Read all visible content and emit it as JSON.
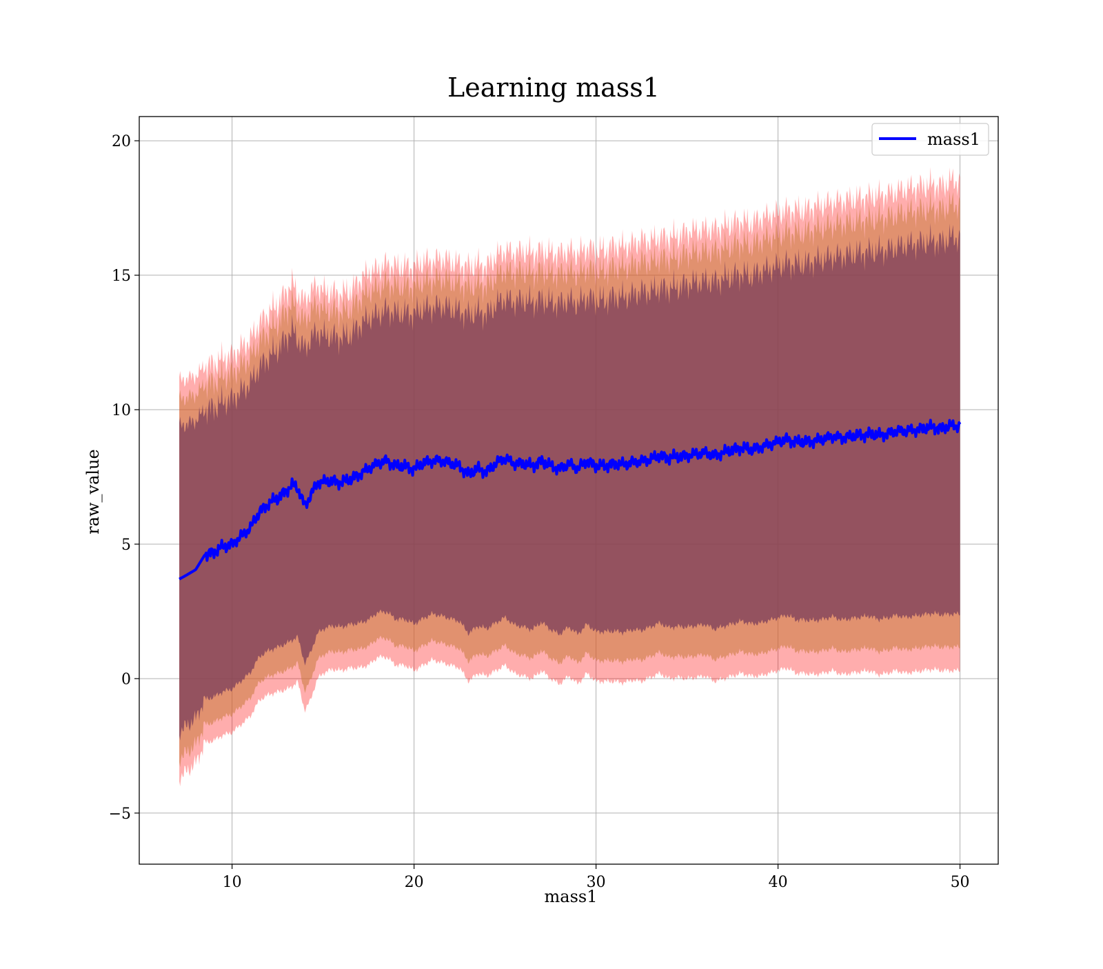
{
  "chart_data": {
    "type": "line",
    "title": "Learning mass1",
    "xlabel": "mass1",
    "ylabel": "raw_value",
    "xlim": [
      4.9,
      52.1
    ],
    "ylim": [
      -6.9,
      20.9
    ],
    "xticks": [
      10,
      20,
      30,
      40,
      50
    ],
    "yticks": [
      -5,
      0,
      5,
      10,
      15,
      20
    ],
    "xtick_labels": [
      "10",
      "20",
      "30",
      "40",
      "50"
    ],
    "ytick_labels": [
      "−5",
      "0",
      "5",
      "10",
      "15",
      "20"
    ],
    "grid": true,
    "legend": {
      "position": "top-right",
      "entries": [
        "mass1"
      ]
    },
    "colors": {
      "line": "#0000ff",
      "band_outer": "#ff0000",
      "band_middle": "#c87a3c",
      "band_inner": "#7a3d5a",
      "grid": "#b0b0b0"
    },
    "series": [
      {
        "name": "mass1",
        "x": [
          7.1,
          7.5,
          8,
          8.5,
          9,
          9.5,
          10,
          10.5,
          11,
          11.5,
          12,
          12.5,
          13,
          13.3,
          13.6,
          14,
          14.3,
          14.7,
          15,
          15.5,
          16,
          16.5,
          17,
          17.5,
          18,
          18.5,
          19,
          19.5,
          20,
          20.5,
          21,
          21.5,
          22,
          22.5,
          23,
          23.5,
          24,
          24.5,
          25,
          25.5,
          26,
          26.5,
          27,
          27.5,
          28,
          28.5,
          29,
          29.5,
          30,
          30.5,
          31,
          31.5,
          32,
          32.5,
          33,
          33.5,
          34,
          34.5,
          35,
          35.5,
          36,
          36.5,
          37,
          37.5,
          38,
          38.5,
          39,
          39.5,
          40,
          40.5,
          41,
          41.5,
          42,
          42.5,
          43,
          43.5,
          44,
          44.5,
          45,
          45.5,
          46,
          46.5,
          47,
          47.5,
          48,
          48.5,
          49,
          49.5,
          50
        ],
        "mean": [
          3.7,
          3.85,
          4.05,
          4.6,
          4.7,
          4.9,
          5.0,
          5.3,
          5.6,
          6.2,
          6.5,
          6.7,
          7.0,
          7.2,
          7.1,
          6.4,
          6.8,
          7.3,
          7.3,
          7.35,
          7.3,
          7.4,
          7.6,
          7.8,
          8.0,
          8.1,
          7.9,
          7.9,
          7.8,
          8.0,
          8.1,
          8.1,
          8.0,
          7.9,
          7.6,
          7.8,
          7.7,
          8.0,
          8.2,
          8.0,
          8.0,
          7.9,
          8.1,
          7.9,
          7.8,
          8.0,
          7.8,
          8.1,
          7.9,
          7.9,
          8.0,
          7.95,
          8.05,
          8.1,
          8.15,
          8.3,
          8.2,
          8.25,
          8.3,
          8.35,
          8.4,
          8.3,
          8.4,
          8.5,
          8.6,
          8.5,
          8.6,
          8.7,
          8.8,
          8.9,
          8.8,
          8.8,
          8.85,
          8.9,
          9.0,
          8.95,
          9.0,
          9.05,
          9.1,
          9.05,
          9.1,
          9.2,
          9.2,
          9.25,
          9.3,
          9.35,
          9.3,
          9.4,
          9.4
        ]
      }
    ],
    "bands": [
      {
        "name": "outer",
        "sigma": 2.6
      },
      {
        "name": "middle",
        "sigma": 2.35
      },
      {
        "name": "inner",
        "sigma": 2.0
      }
    ],
    "band_half_width_base": [
      7.4,
      7.3,
      7.2,
      7.0,
      7.0,
      7.0,
      7.0,
      7.0,
      7.0,
      7.0,
      7.1,
      7.2,
      7.4,
      7.5,
      7.2,
      7.6,
      7.6,
      7.3,
      7.1,
      7.0,
      7.0,
      7.0,
      7.2,
      7.3,
      7.2,
      7.3,
      7.4,
      7.4,
      7.5,
      7.5,
      7.4,
      7.5,
      7.5,
      7.5,
      7.7,
      7.6,
      7.6,
      7.7,
      7.7,
      7.8,
      7.9,
      7.9,
      7.8,
      7.9,
      8.0,
      7.9,
      8.0,
      7.9,
      8.0,
      8.0,
      8.1,
      8.1,
      8.1,
      8.2,
      8.1,
      8.1,
      8.2,
      8.2,
      8.3,
      8.3,
      8.3,
      8.4,
      8.4,
      8.4,
      8.4,
      8.4,
      8.5,
      8.5,
      8.5,
      8.5,
      8.6,
      8.6,
      8.7,
      8.7,
      8.7,
      8.8,
      8.8,
      8.8,
      8.8,
      8.9,
      8.9,
      8.9,
      9.0,
      9.0,
      9.0,
      9.0,
      9.0,
      9.1,
      9.1
    ]
  }
}
